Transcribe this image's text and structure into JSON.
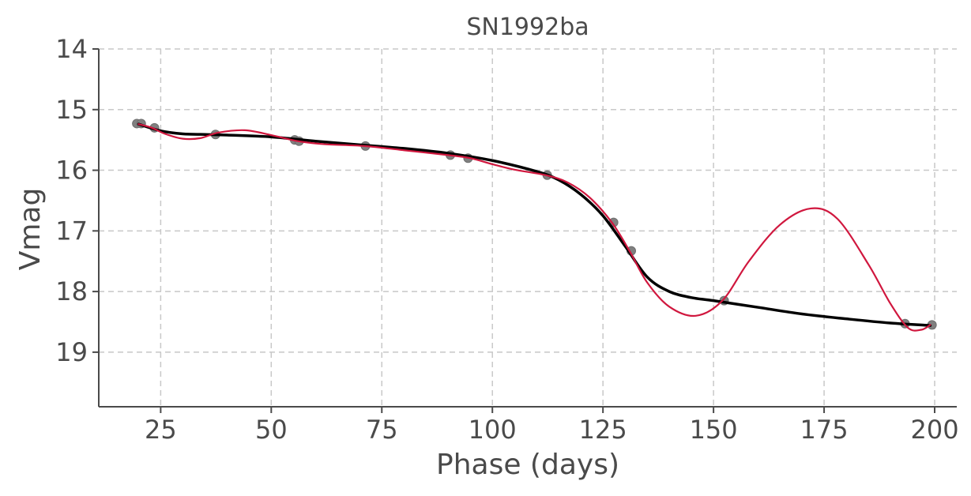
{
  "chart_data": {
    "type": "scatter",
    "title": "SN1992ba",
    "xlabel": "Phase (days)",
    "ylabel": "Vmag",
    "xlim": [
      11,
      205
    ],
    "ylim": [
      19.9,
      14
    ],
    "y_inverted": true,
    "x_ticks": [
      25,
      50,
      75,
      100,
      125,
      150,
      175,
      200
    ],
    "y_ticks": [
      14,
      15,
      16,
      17,
      18,
      19
    ],
    "grid": true,
    "colors": {
      "points": "#808080",
      "smooth_fit": "#000000",
      "spline_fit": "#d0173e"
    },
    "series": [
      {
        "kind": "points",
        "x": [
          19.6,
          20.6,
          23.6,
          37.4,
          55.3,
          56.3,
          71.3,
          90.5,
          94.5,
          112.4,
          127.4,
          131.4,
          152.4,
          193.3,
          199.4
        ],
        "y": [
          15.23,
          15.23,
          15.3,
          15.41,
          15.5,
          15.52,
          15.6,
          15.75,
          15.8,
          16.08,
          16.86,
          17.33,
          18.15,
          18.53,
          18.55
        ]
      },
      {
        "kind": "line",
        "x": [
          20,
          25,
          30,
          35,
          40,
          50,
          60,
          70,
          80,
          90,
          100,
          110,
          115,
          120,
          125,
          130,
          135,
          140,
          145,
          150,
          160,
          170,
          180,
          190,
          199
        ],
        "y": [
          15.24,
          15.35,
          15.4,
          15.41,
          15.42,
          15.45,
          15.52,
          15.58,
          15.64,
          15.72,
          15.84,
          16.02,
          16.16,
          16.4,
          16.75,
          17.25,
          17.76,
          18.0,
          18.1,
          18.15,
          18.26,
          18.37,
          18.45,
          18.52,
          18.56
        ]
      },
      {
        "kind": "line",
        "x": [
          20,
          23,
          26,
          30,
          34,
          38,
          44,
          50,
          56,
          62,
          71,
          80,
          90,
          95,
          100,
          105,
          112,
          117,
          122,
          127,
          131,
          135,
          140,
          146,
          152,
          158,
          165,
          172,
          178,
          185,
          190,
          194,
          197,
          199
        ],
        "y": [
          15.24,
          15.3,
          15.4,
          15.48,
          15.47,
          15.38,
          15.34,
          15.42,
          15.52,
          15.57,
          15.6,
          15.67,
          15.75,
          15.8,
          15.9,
          15.99,
          16.08,
          16.2,
          16.45,
          16.86,
          17.33,
          17.85,
          18.25,
          18.4,
          18.15,
          17.5,
          16.9,
          16.63,
          16.8,
          17.55,
          18.2,
          18.6,
          18.63,
          18.55
        ]
      }
    ]
  }
}
